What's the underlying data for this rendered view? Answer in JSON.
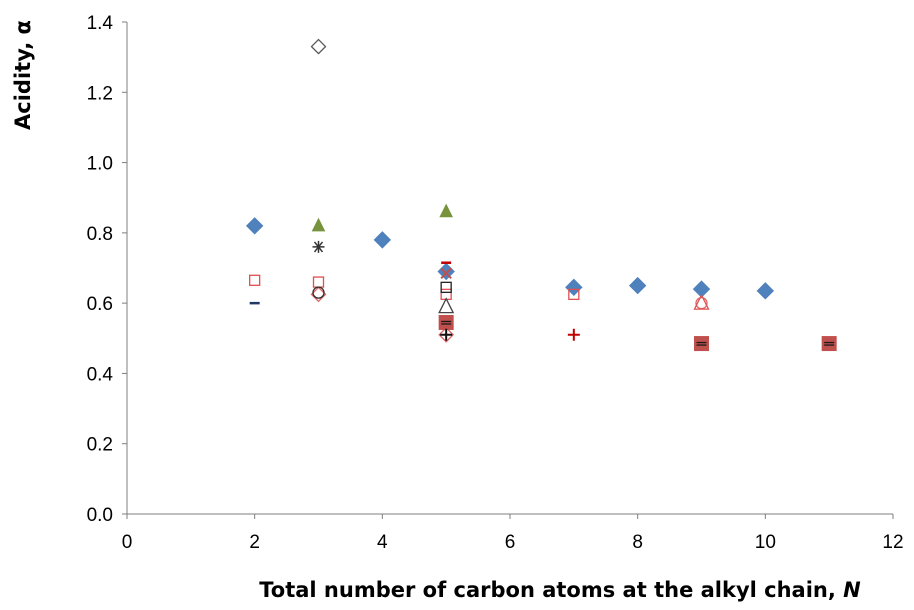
{
  "chart_data": {
    "type": "scatter",
    "title": "",
    "xlabel": "Total number of carbon atoms at the alkyl chain, ",
    "xlabel_italic": "N",
    "ylabel": "Acidity, α",
    "xlim": [
      0,
      12
    ],
    "ylim": [
      0,
      1.4
    ],
    "x_ticks": [
      0,
      2,
      4,
      6,
      8,
      10,
      12
    ],
    "y_ticks": [
      0.0,
      0.2,
      0.4,
      0.6,
      0.8,
      1.0,
      1.2,
      1.4
    ],
    "x_tick_labels": [
      "0",
      "2",
      "4",
      "6",
      "8",
      "10",
      "12"
    ],
    "y_tick_labels": [
      "0.0",
      "0.2",
      "0.4",
      "0.6",
      "0.8",
      "1.0",
      "1.2",
      "1.4"
    ],
    "grid": false,
    "legend": "none",
    "series": [
      {
        "marker": "diamond-filled",
        "color": "#4F81BD",
        "points": [
          {
            "x": 2,
            "y": 0.82
          },
          {
            "x": 4,
            "y": 0.78
          },
          {
            "x": 5,
            "y": 0.69
          },
          {
            "x": 7,
            "y": 0.645
          },
          {
            "x": 8,
            "y": 0.65
          },
          {
            "x": 9,
            "y": 0.64
          },
          {
            "x": 10,
            "y": 0.635
          }
        ]
      },
      {
        "marker": "diamond-open",
        "color": "#595959",
        "points": [
          {
            "x": 3,
            "y": 1.33
          }
        ]
      },
      {
        "marker": "triangle-filled",
        "color": "#77933C",
        "points": [
          {
            "x": 3,
            "y": 0.82
          },
          {
            "x": 5,
            "y": 0.86
          }
        ]
      },
      {
        "marker": "asterisk",
        "color": "#333333",
        "points": [
          {
            "x": 3,
            "y": 0.76
          }
        ]
      },
      {
        "marker": "square-open",
        "color": "#E05050",
        "points": [
          {
            "x": 2,
            "y": 0.665
          },
          {
            "x": 3,
            "y": 0.66
          },
          {
            "x": 5,
            "y": 0.625
          },
          {
            "x": 7,
            "y": 0.625
          }
        ]
      },
      {
        "marker": "diamond-open",
        "color": "#E06666",
        "points": [
          {
            "x": 3,
            "y": 0.625
          },
          {
            "x": 5,
            "y": 0.51
          }
        ]
      },
      {
        "marker": "circle-open",
        "color": "#333333",
        "points": [
          {
            "x": 3,
            "y": 0.63
          }
        ]
      },
      {
        "marker": "dash",
        "color": "#1F3864",
        "points": [
          {
            "x": 2,
            "y": 0.6
          }
        ]
      },
      {
        "marker": "square-open",
        "color": "#222222",
        "points": [
          {
            "x": 5,
            "y": 0.645
          }
        ]
      },
      {
        "marker": "triangle-open",
        "color": "#444444",
        "points": [
          {
            "x": 5,
            "y": 0.59
          }
        ]
      },
      {
        "marker": "x",
        "color": "#C0504D",
        "points": [
          {
            "x": 5,
            "y": 0.685
          }
        ]
      },
      {
        "marker": "dash",
        "color": "#C00000",
        "points": [
          {
            "x": 5,
            "y": 0.715
          }
        ]
      },
      {
        "marker": "square-filled-dash",
        "color": "#C0504D",
        "points": [
          {
            "x": 5,
            "y": 0.545
          },
          {
            "x": 9,
            "y": 0.485
          },
          {
            "x": 11,
            "y": 0.485
          }
        ]
      },
      {
        "marker": "plus",
        "color": "#111111",
        "points": [
          {
            "x": 5,
            "y": 0.51
          }
        ]
      },
      {
        "marker": "plus",
        "color": "#C00000",
        "points": [
          {
            "x": 7,
            "y": 0.51
          }
        ]
      },
      {
        "marker": "circle-open",
        "color": "#E06666",
        "points": [
          {
            "x": 9,
            "y": 0.6
          }
        ]
      },
      {
        "marker": "triangle-open",
        "color": "#E05050",
        "points": [
          {
            "x": 9,
            "y": 0.6
          }
        ]
      }
    ]
  }
}
